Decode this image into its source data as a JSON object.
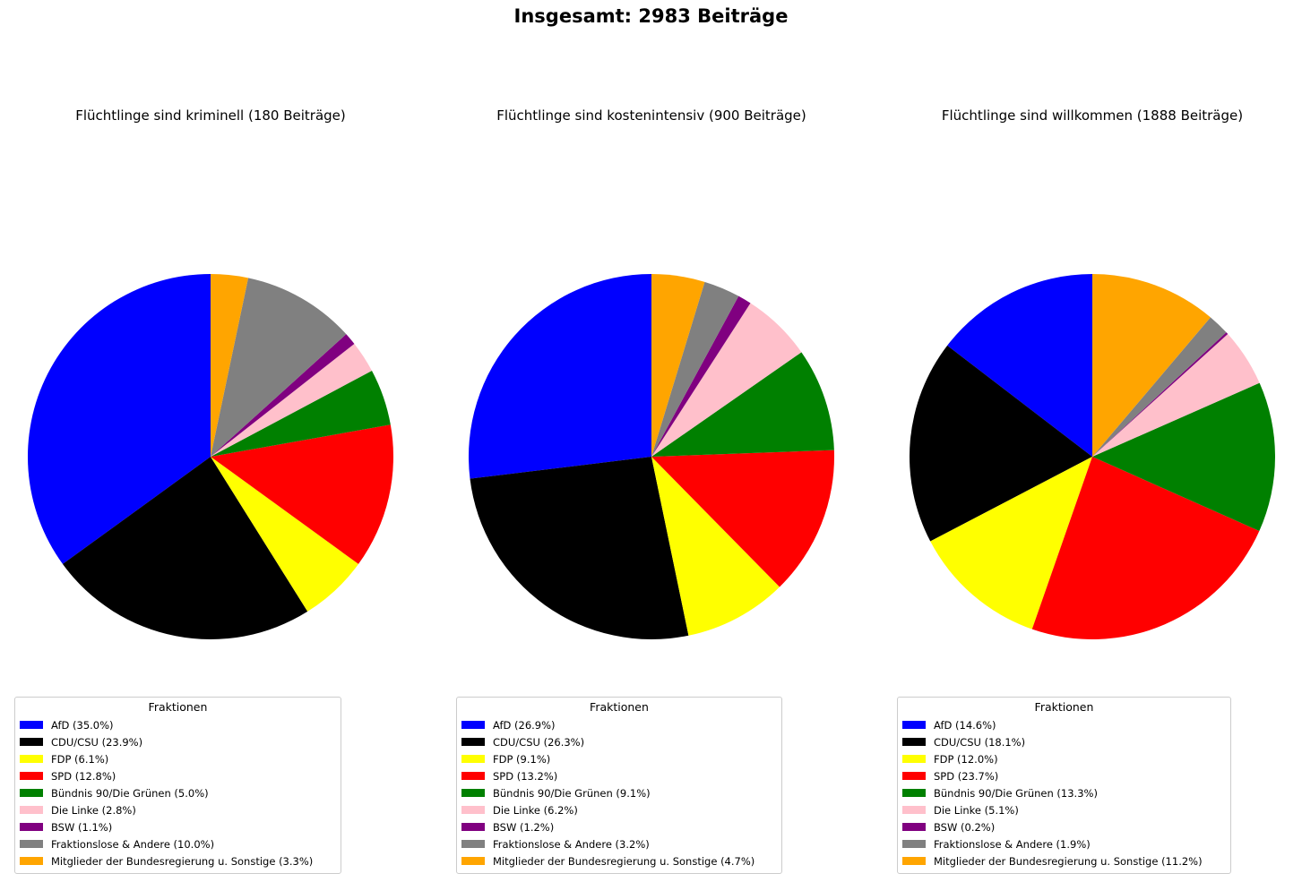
{
  "suptitle": "Insgesamt: 2983 Beiträge",
  "colors": {
    "afd": "#0000ff",
    "cdu_csu": "#000000",
    "fdp": "#ffff00",
    "spd": "#ff0000",
    "gruene": "#008000",
    "linke": "#ffc0cb",
    "bsw": "#800080",
    "fraktionslose": "#808080",
    "regierung": "#ffa500"
  },
  "legend_title": "Fraktionen",
  "chart_data": [
    {
      "type": "pie",
      "title": "Flüchtlinge sind kriminell (180 Beiträge)",
      "start_angle_deg": 90,
      "direction": "counterclockwise",
      "slices": [
        {
          "label": "AfD",
          "value": 35.0,
          "legend": "AfD (35.0%)",
          "color": "#0000ff"
        },
        {
          "label": "CDU/CSU",
          "value": 23.9,
          "legend": "CDU/CSU (23.9%)",
          "color": "#000000"
        },
        {
          "label": "FDP",
          "value": 6.1,
          "legend": "FDP (6.1%)",
          "color": "#ffff00"
        },
        {
          "label": "SPD",
          "value": 12.8,
          "legend": "SPD (12.8%)",
          "color": "#ff0000"
        },
        {
          "label": "Bündnis 90/Die Grünen",
          "value": 5.0,
          "legend": "Bündnis 90/Die Grünen (5.0%)",
          "color": "#008000"
        },
        {
          "label": "Die Linke",
          "value": 2.8,
          "legend": "Die Linke (2.8%)",
          "color": "#ffc0cb"
        },
        {
          "label": "BSW",
          "value": 1.1,
          "legend": "BSW (1.1%)",
          "color": "#800080"
        },
        {
          "label": "Fraktionslose & Andere",
          "value": 10.0,
          "legend": "Fraktionslose & Andere (10.0%)",
          "color": "#808080"
        },
        {
          "label": "Mitglieder der Bundesregierung u. Sonstige",
          "value": 3.3,
          "legend": "Mitglieder der Bundesregierung u. Sonstige (3.3%)",
          "color": "#ffa500"
        }
      ],
      "legend_title": "Fraktionen",
      "legend_position": "bottom"
    },
    {
      "type": "pie",
      "title": "Flüchtlinge sind kostenintensiv (900 Beiträge)",
      "start_angle_deg": 90,
      "direction": "counterclockwise",
      "slices": [
        {
          "label": "AfD",
          "value": 26.9,
          "legend": "AfD (26.9%)",
          "color": "#0000ff"
        },
        {
          "label": "CDU/CSU",
          "value": 26.3,
          "legend": "CDU/CSU (26.3%)",
          "color": "#000000"
        },
        {
          "label": "FDP",
          "value": 9.1,
          "legend": "FDP (9.1%)",
          "color": "#ffff00"
        },
        {
          "label": "SPD",
          "value": 13.2,
          "legend": "SPD (13.2%)",
          "color": "#ff0000"
        },
        {
          "label": "Bündnis 90/Die Grünen",
          "value": 9.1,
          "legend": "Bündnis 90/Die Grünen (9.1%)",
          "color": "#008000"
        },
        {
          "label": "Die Linke",
          "value": 6.2,
          "legend": "Die Linke (6.2%)",
          "color": "#ffc0cb"
        },
        {
          "label": "BSW",
          "value": 1.2,
          "legend": "BSW (1.2%)",
          "color": "#800080"
        },
        {
          "label": "Fraktionslose & Andere",
          "value": 3.2,
          "legend": "Fraktionslose & Andere (3.2%)",
          "color": "#808080"
        },
        {
          "label": "Mitglieder der Bundesregierung u. Sonstige",
          "value": 4.7,
          "legend": "Mitglieder der Bundesregierung u. Sonstige (4.7%)",
          "color": "#ffa500"
        }
      ],
      "legend_title": "Fraktionen",
      "legend_position": "bottom"
    },
    {
      "type": "pie",
      "title": "Flüchtlinge sind willkommen (1888 Beiträge)",
      "start_angle_deg": 90,
      "direction": "counterclockwise",
      "slices": [
        {
          "label": "AfD",
          "value": 14.6,
          "legend": "AfD (14.6%)",
          "color": "#0000ff"
        },
        {
          "label": "CDU/CSU",
          "value": 18.1,
          "legend": "CDU/CSU (18.1%)",
          "color": "#000000"
        },
        {
          "label": "FDP",
          "value": 12.0,
          "legend": "FDP (12.0%)",
          "color": "#ffff00"
        },
        {
          "label": "SPD",
          "value": 23.7,
          "legend": "SPD (23.7%)",
          "color": "#ff0000"
        },
        {
          "label": "Bündnis 90/Die Grünen",
          "value": 13.3,
          "legend": "Bündnis 90/Die Grünen (13.3%)",
          "color": "#008000"
        },
        {
          "label": "Die Linke",
          "value": 5.1,
          "legend": "Die Linke (5.1%)",
          "color": "#ffc0cb"
        },
        {
          "label": "BSW",
          "value": 0.2,
          "legend": "BSW (0.2%)",
          "color": "#800080"
        },
        {
          "label": "Fraktionslose & Andere",
          "value": 1.9,
          "legend": "Fraktionslose & Andere (1.9%)",
          "color": "#808080"
        },
        {
          "label": "Mitglieder der Bundesregierung u. Sonstige",
          "value": 11.2,
          "legend": "Mitglieder der Bundesregierung u. Sonstige (11.2%)",
          "color": "#ffa500"
        }
      ],
      "legend_title": "Fraktionen",
      "legend_position": "bottom"
    }
  ]
}
